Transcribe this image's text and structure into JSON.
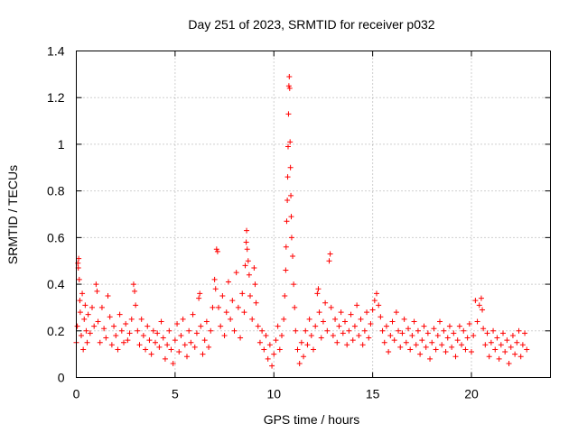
{
  "chart_data": {
    "type": "scatter",
    "title": "Day 251 of 2023, SRMTID for receiver p032",
    "xlabel": "GPS time / hours",
    "ylabel": "SRMTID / TECUs",
    "xlim": [
      0,
      24
    ],
    "ylim": [
      0,
      1.4
    ],
    "x_ticks": [
      0,
      5,
      10,
      15,
      20
    ],
    "x_tick_labels": [
      "0",
      "5",
      "10",
      "15",
      "20"
    ],
    "y_ticks": [
      0,
      0.2,
      0.4,
      0.6,
      0.8,
      1.0,
      1.2,
      1.4
    ],
    "y_tick_labels": [
      "0",
      "0.2",
      "0.4",
      "0.6",
      "0.8",
      "1",
      "1.2",
      "1.4"
    ],
    "grid": true,
    "marker": "+",
    "marker_color": "#ff0000",
    "series": [
      {
        "name": "SRMTID",
        "points": [
          [
            0.0,
            0.15
          ],
          [
            0.05,
            0.22
          ],
          [
            0.08,
            0.49
          ],
          [
            0.1,
            0.47
          ],
          [
            0.12,
            0.51
          ],
          [
            0.15,
            0.42
          ],
          [
            0.18,
            0.33
          ],
          [
            0.2,
            0.28
          ],
          [
            0.25,
            0.18
          ],
          [
            0.3,
            0.36
          ],
          [
            0.35,
            0.12
          ],
          [
            0.4,
            0.25
          ],
          [
            0.45,
            0.31
          ],
          [
            0.5,
            0.2
          ],
          [
            0.55,
            0.15
          ],
          [
            0.6,
            0.27
          ],
          [
            0.7,
            0.19
          ],
          [
            0.8,
            0.3
          ],
          [
            0.9,
            0.22
          ],
          [
            1.0,
            0.4
          ],
          [
            1.05,
            0.37
          ],
          [
            1.1,
            0.24
          ],
          [
            1.2,
            0.15
          ],
          [
            1.3,
            0.3
          ],
          [
            1.4,
            0.21
          ],
          [
            1.5,
            0.17
          ],
          [
            1.6,
            0.35
          ],
          [
            1.7,
            0.26
          ],
          [
            1.8,
            0.14
          ],
          [
            1.9,
            0.22
          ],
          [
            2.0,
            0.18
          ],
          [
            2.1,
            0.12
          ],
          [
            2.2,
            0.27
          ],
          [
            2.3,
            0.2
          ],
          [
            2.4,
            0.15
          ],
          [
            2.5,
            0.23
          ],
          [
            2.6,
            0.16
          ],
          [
            2.7,
            0.19
          ],
          [
            2.8,
            0.25
          ],
          [
            2.9,
            0.4
          ],
          [
            2.95,
            0.37
          ],
          [
            3.0,
            0.31
          ],
          [
            3.1,
            0.2
          ],
          [
            3.2,
            0.14
          ],
          [
            3.3,
            0.25
          ],
          [
            3.4,
            0.18
          ],
          [
            3.5,
            0.12
          ],
          [
            3.6,
            0.22
          ],
          [
            3.7,
            0.16
          ],
          [
            3.8,
            0.1
          ],
          [
            3.9,
            0.2
          ],
          [
            4.0,
            0.15
          ],
          [
            4.1,
            0.19
          ],
          [
            4.2,
            0.13
          ],
          [
            4.3,
            0.24
          ],
          [
            4.4,
            0.17
          ],
          [
            4.5,
            0.08
          ],
          [
            4.6,
            0.14
          ],
          [
            4.7,
            0.2
          ],
          [
            4.8,
            0.12
          ],
          [
            4.9,
            0.06
          ],
          [
            5.0,
            0.16
          ],
          [
            5.1,
            0.23
          ],
          [
            5.2,
            0.11
          ],
          [
            5.3,
            0.18
          ],
          [
            5.4,
            0.25
          ],
          [
            5.5,
            0.14
          ],
          [
            5.6,
            0.09
          ],
          [
            5.7,
            0.2
          ],
          [
            5.8,
            0.15
          ],
          [
            5.9,
            0.27
          ],
          [
            6.0,
            0.13
          ],
          [
            6.1,
            0.19
          ],
          [
            6.2,
            0.34
          ],
          [
            6.25,
            0.36
          ],
          [
            6.3,
            0.22
          ],
          [
            6.4,
            0.1
          ],
          [
            6.5,
            0.16
          ],
          [
            6.6,
            0.24
          ],
          [
            6.7,
            0.13
          ],
          [
            6.8,
            0.2
          ],
          [
            6.9,
            0.3
          ],
          [
            7.0,
            0.42
          ],
          [
            7.05,
            0.38
          ],
          [
            7.1,
            0.55
          ],
          [
            7.15,
            0.54
          ],
          [
            7.2,
            0.3
          ],
          [
            7.3,
            0.22
          ],
          [
            7.4,
            0.35
          ],
          [
            7.5,
            0.18
          ],
          [
            7.6,
            0.28
          ],
          [
            7.7,
            0.41
          ],
          [
            7.8,
            0.25
          ],
          [
            7.9,
            0.33
          ],
          [
            8.0,
            0.2
          ],
          [
            8.1,
            0.45
          ],
          [
            8.2,
            0.3
          ],
          [
            8.3,
            0.17
          ],
          [
            8.4,
            0.36
          ],
          [
            8.5,
            0.28
          ],
          [
            8.55,
            0.48
          ],
          [
            8.6,
            0.58
          ],
          [
            8.62,
            0.63
          ],
          [
            8.65,
            0.55
          ],
          [
            8.7,
            0.5
          ],
          [
            8.75,
            0.44
          ],
          [
            8.8,
            0.35
          ],
          [
            8.9,
            0.25
          ],
          [
            9.0,
            0.47
          ],
          [
            9.05,
            0.4
          ],
          [
            9.1,
            0.32
          ],
          [
            9.2,
            0.22
          ],
          [
            9.3,
            0.15
          ],
          [
            9.4,
            0.2
          ],
          [
            9.5,
            0.12
          ],
          [
            9.6,
            0.18
          ],
          [
            9.7,
            0.08
          ],
          [
            9.8,
            0.14
          ],
          [
            9.9,
            0.05
          ],
          [
            10.0,
            0.1
          ],
          [
            10.1,
            0.16
          ],
          [
            10.2,
            0.22
          ],
          [
            10.3,
            0.12
          ],
          [
            10.4,
            0.18
          ],
          [
            10.5,
            0.25
          ],
          [
            10.55,
            0.35
          ],
          [
            10.6,
            0.46
          ],
          [
            10.62,
            0.56
          ],
          [
            10.65,
            0.67
          ],
          [
            10.68,
            0.76
          ],
          [
            10.7,
            0.86
          ],
          [
            10.72,
            0.99
          ],
          [
            10.74,
            1.13
          ],
          [
            10.76,
            1.25
          ],
          [
            10.78,
            1.29
          ],
          [
            10.8,
            1.24
          ],
          [
            10.82,
            1.01
          ],
          [
            10.84,
            0.9
          ],
          [
            10.86,
            0.78
          ],
          [
            10.88,
            0.69
          ],
          [
            10.9,
            0.6
          ],
          [
            10.95,
            0.52
          ],
          [
            11.0,
            0.4
          ],
          [
            11.05,
            0.3
          ],
          [
            11.1,
            0.2
          ],
          [
            11.2,
            0.12
          ],
          [
            11.3,
            0.06
          ],
          [
            11.4,
            0.15
          ],
          [
            11.5,
            0.09
          ],
          [
            11.6,
            0.2
          ],
          [
            11.7,
            0.14
          ],
          [
            11.8,
            0.25
          ],
          [
            11.9,
            0.18
          ],
          [
            12.0,
            0.12
          ],
          [
            12.1,
            0.22
          ],
          [
            12.2,
            0.36
          ],
          [
            12.25,
            0.38
          ],
          [
            12.3,
            0.28
          ],
          [
            12.4,
            0.17
          ],
          [
            12.5,
            0.24
          ],
          [
            12.6,
            0.32
          ],
          [
            12.7,
            0.2
          ],
          [
            12.8,
            0.5
          ],
          [
            12.85,
            0.53
          ],
          [
            12.9,
            0.3
          ],
          [
            13.0,
            0.18
          ],
          [
            13.1,
            0.25
          ],
          [
            13.2,
            0.15
          ],
          [
            13.3,
            0.22
          ],
          [
            13.4,
            0.28
          ],
          [
            13.5,
            0.19
          ],
          [
            13.6,
            0.24
          ],
          [
            13.7,
            0.14
          ],
          [
            13.8,
            0.2
          ],
          [
            13.9,
            0.27
          ],
          [
            14.0,
            0.16
          ],
          [
            14.1,
            0.22
          ],
          [
            14.2,
            0.31
          ],
          [
            14.3,
            0.18
          ],
          [
            14.4,
            0.25
          ],
          [
            14.5,
            0.14
          ],
          [
            14.6,
            0.2
          ],
          [
            14.7,
            0.28
          ],
          [
            14.8,
            0.17
          ],
          [
            14.9,
            0.23
          ],
          [
            15.0,
            0.29
          ],
          [
            15.1,
            0.33
          ],
          [
            15.2,
            0.36
          ],
          [
            15.3,
            0.31
          ],
          [
            15.4,
            0.26
          ],
          [
            15.5,
            0.2
          ],
          [
            15.6,
            0.15
          ],
          [
            15.7,
            0.22
          ],
          [
            15.8,
            0.11
          ],
          [
            15.9,
            0.18
          ],
          [
            16.0,
            0.24
          ],
          [
            16.1,
            0.16
          ],
          [
            16.2,
            0.28
          ],
          [
            16.3,
            0.2
          ],
          [
            16.4,
            0.13
          ],
          [
            16.5,
            0.19
          ],
          [
            16.6,
            0.25
          ],
          [
            16.7,
            0.15
          ],
          [
            16.8,
            0.21
          ],
          [
            16.9,
            0.12
          ],
          [
            17.0,
            0.18
          ],
          [
            17.1,
            0.24
          ],
          [
            17.2,
            0.14
          ],
          [
            17.3,
            0.2
          ],
          [
            17.4,
            0.1
          ],
          [
            17.5,
            0.16
          ],
          [
            17.6,
            0.22
          ],
          [
            17.7,
            0.13
          ],
          [
            17.8,
            0.19
          ],
          [
            17.9,
            0.08
          ],
          [
            18.0,
            0.15
          ],
          [
            18.1,
            0.21
          ],
          [
            18.2,
            0.12
          ],
          [
            18.3,
            0.18
          ],
          [
            18.4,
            0.24
          ],
          [
            18.5,
            0.14
          ],
          [
            18.6,
            0.2
          ],
          [
            18.7,
            0.11
          ],
          [
            18.8,
            0.17
          ],
          [
            18.9,
            0.22
          ],
          [
            19.0,
            0.13
          ],
          [
            19.1,
            0.19
          ],
          [
            19.2,
            0.09
          ],
          [
            19.3,
            0.16
          ],
          [
            19.4,
            0.22
          ],
          [
            19.5,
            0.14
          ],
          [
            19.6,
            0.2
          ],
          [
            19.7,
            0.12
          ],
          [
            19.8,
            0.17
          ],
          [
            19.9,
            0.23
          ],
          [
            20.0,
            0.11
          ],
          [
            20.1,
            0.18
          ],
          [
            20.2,
            0.33
          ],
          [
            20.3,
            0.24
          ],
          [
            20.4,
            0.31
          ],
          [
            20.5,
            0.34
          ],
          [
            20.55,
            0.29
          ],
          [
            20.6,
            0.21
          ],
          [
            20.7,
            0.14
          ],
          [
            20.8,
            0.19
          ],
          [
            20.9,
            0.09
          ],
          [
            21.0,
            0.15
          ],
          [
            21.1,
            0.2
          ],
          [
            21.2,
            0.12
          ],
          [
            21.3,
            0.17
          ],
          [
            21.4,
            0.08
          ],
          [
            21.5,
            0.14
          ],
          [
            21.6,
            0.19
          ],
          [
            21.7,
            0.11
          ],
          [
            21.8,
            0.16
          ],
          [
            21.9,
            0.06
          ],
          [
            22.0,
            0.13
          ],
          [
            22.1,
            0.18
          ],
          [
            22.2,
            0.1
          ],
          [
            22.3,
            0.15
          ],
          [
            22.4,
            0.2
          ],
          [
            22.5,
            0.09
          ],
          [
            22.6,
            0.14
          ],
          [
            22.7,
            0.19
          ],
          [
            22.8,
            0.12
          ]
        ]
      }
    ]
  }
}
